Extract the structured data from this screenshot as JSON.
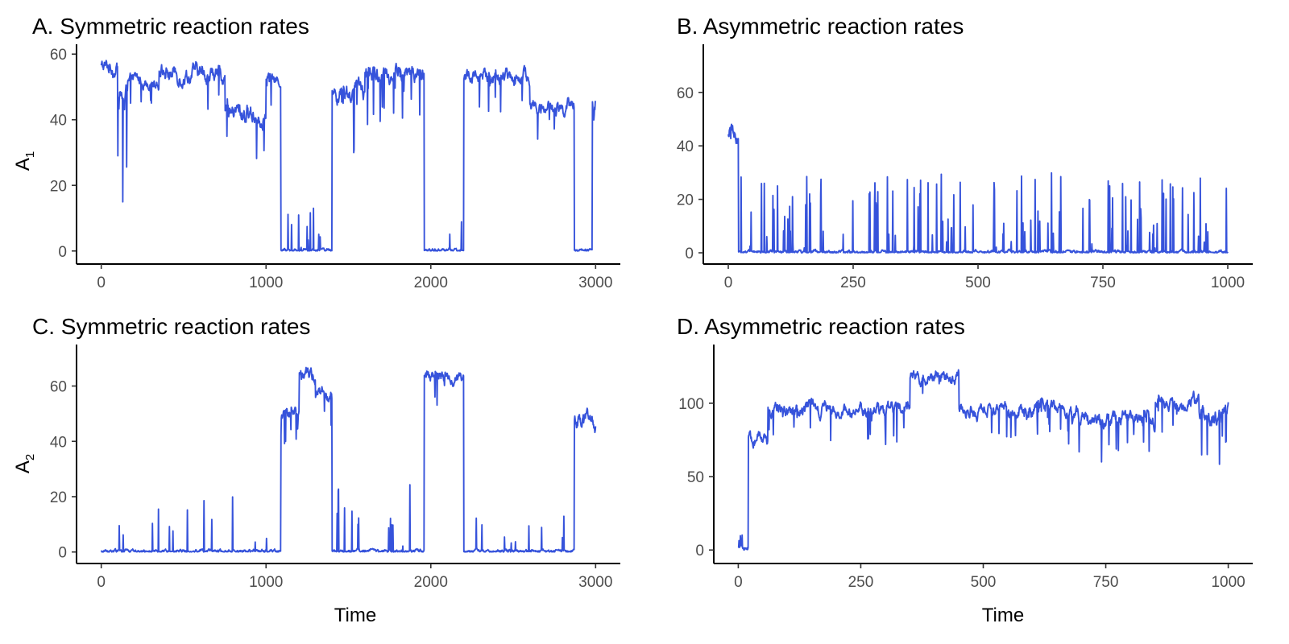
{
  "figure": {
    "series_color": "#3653db",
    "axis_color": "#000000",
    "tick_label_color": "#4d4d4d"
  },
  "chart_data": [
    {
      "id": "A",
      "type": "line",
      "title": "A. Symmetric reaction rates",
      "xlabel": "",
      "ylabel": {
        "main": "A",
        "sub": "1"
      },
      "xlim": [
        -150,
        3150
      ],
      "ylim": [
        -3,
        63
      ],
      "xticks": [
        0,
        1000,
        2000,
        3000
      ],
      "xtick_labels": [
        "0",
        "1000",
        "2000",
        "3000"
      ],
      "yticks": [
        0,
        20,
        40,
        60
      ],
      "ytick_labels": [
        "0",
        "20",
        "40",
        "60"
      ],
      "x_end": 3000,
      "segments": [
        {
          "x0": 0,
          "x1": 100,
          "level": 56,
          "noise": 3,
          "spike_rate": 0.02,
          "spike_depth": 10
        },
        {
          "x0": 100,
          "x1": 160,
          "level": 48,
          "noise": 5,
          "spike_rate": 0.2,
          "spike_depth": 35
        },
        {
          "x0": 160,
          "x1": 350,
          "level": 52,
          "noise": 2.5,
          "spike_rate": 0.04,
          "spike_depth": 15
        },
        {
          "x0": 350,
          "x1": 750,
          "level": 54,
          "noise": 3.5,
          "spike_rate": 0.04,
          "spike_depth": 14
        },
        {
          "x0": 750,
          "x1": 1000,
          "level": 42,
          "noise": 4,
          "spike_rate": 0.05,
          "spike_depth": 16
        },
        {
          "x0": 1000,
          "x1": 1090,
          "level": 52,
          "noise": 2.5,
          "spike_rate": 0.02,
          "spike_depth": 10
        },
        {
          "x0": 1090,
          "x1": 1400,
          "level": 0,
          "noise": 1,
          "spike_rate": 0.05,
          "spike_height": 14
        },
        {
          "x0": 1400,
          "x1": 1600,
          "level": 48,
          "noise": 3.5,
          "spike_rate": 0.06,
          "spike_depth": 20
        },
        {
          "x0": 1600,
          "x1": 1960,
          "level": 54,
          "noise": 3.5,
          "spike_rate": 0.05,
          "spike_depth": 16
        },
        {
          "x0": 1960,
          "x1": 2200,
          "level": 0,
          "noise": 1,
          "spike_rate": 0.03,
          "spike_height": 20
        },
        {
          "x0": 2200,
          "x1": 2600,
          "level": 53,
          "noise": 3,
          "spike_rate": 0.04,
          "spike_depth": 12
        },
        {
          "x0": 2600,
          "x1": 2870,
          "level": 44,
          "noise": 3,
          "spike_rate": 0.03,
          "spike_depth": 10
        },
        {
          "x0": 2870,
          "x1": 2980,
          "level": 0,
          "noise": 1,
          "spike_rate": 0.03,
          "spike_height": 8
        },
        {
          "x0": 2980,
          "x1": 3000,
          "level": 45,
          "noise": 6,
          "spike_rate": 0.1,
          "spike_depth": 20
        }
      ]
    },
    {
      "id": "B",
      "type": "line",
      "title": "B. Asymmetric reaction rates",
      "xlabel": "",
      "ylabel": {
        "main": "",
        "sub": ""
      },
      "xlim": [
        -50,
        1050
      ],
      "ylim": [
        -3,
        78
      ],
      "xticks": [
        0,
        250,
        500,
        750,
        1000
      ],
      "xtick_labels": [
        "0",
        "250",
        "500",
        "750",
        "1000"
      ],
      "yticks": [
        0,
        20,
        40,
        60
      ],
      "ytick_labels": [
        "0",
        "20",
        "40",
        "60"
      ],
      "x_end": 1000,
      "segments": [
        {
          "x0": 0,
          "x1": 20,
          "level": 44,
          "noise": 5,
          "spike_rate": 0.1,
          "spike_depth": 12
        },
        {
          "x0": 20,
          "x1": 1000,
          "level": 0,
          "noise": 1.2,
          "spike_rate": 0.07,
          "spike_height": 30
        }
      ]
    },
    {
      "id": "C",
      "type": "line",
      "title": "C. Symmetric reaction rates",
      "xlabel": "Time",
      "ylabel": {
        "main": "A",
        "sub": "2"
      },
      "xlim": [
        -150,
        3150
      ],
      "ylim": [
        -3,
        75
      ],
      "xticks": [
        0,
        1000,
        2000,
        3000
      ],
      "xtick_labels": [
        "0",
        "1000",
        "2000",
        "3000"
      ],
      "yticks": [
        0,
        20,
        40,
        60
      ],
      "ytick_labels": [
        "0",
        "20",
        "40",
        "60"
      ],
      "x_end": 3000,
      "segments": [
        {
          "x0": 0,
          "x1": 1090,
          "level": 0,
          "noise": 1.2,
          "spike_rate": 0.03,
          "spike_height": 20
        },
        {
          "x0": 1090,
          "x1": 1200,
          "level": 50,
          "noise": 3,
          "spike_rate": 0.05,
          "spike_depth": 12
        },
        {
          "x0": 1200,
          "x1": 1300,
          "level": 64,
          "noise": 3.5,
          "spike_rate": 0.03,
          "spike_depth": 10
        },
        {
          "x0": 1300,
          "x1": 1400,
          "level": 56,
          "noise": 3.5,
          "spike_rate": 0.05,
          "spike_depth": 15
        },
        {
          "x0": 1400,
          "x1": 1960,
          "level": 0,
          "noise": 1.2,
          "spike_rate": 0.05,
          "spike_height": 28
        },
        {
          "x0": 1960,
          "x1": 2200,
          "level": 63,
          "noise": 3,
          "spike_rate": 0.03,
          "spike_depth": 12
        },
        {
          "x0": 2200,
          "x1": 2870,
          "level": 0,
          "noise": 1.2,
          "spike_rate": 0.04,
          "spike_height": 14
        },
        {
          "x0": 2870,
          "x1": 3000,
          "level": 47,
          "noise": 4,
          "spike_rate": 0.05,
          "spike_depth": 15
        }
      ]
    },
    {
      "id": "D",
      "type": "line",
      "title": "D. Asymmetric reaction rates",
      "xlabel": "Time",
      "ylabel": {
        "main": "",
        "sub": ""
      },
      "xlim": [
        -50,
        1050
      ],
      "ylim": [
        -7,
        140
      ],
      "xticks": [
        0,
        250,
        500,
        750,
        1000
      ],
      "xtick_labels": [
        "0",
        "250",
        "500",
        "750",
        "1000"
      ],
      "yticks": [
        0,
        50,
        100
      ],
      "ytick_labels": [
        "0",
        "50",
        "100"
      ],
      "x_end": 1000,
      "segments": [
        {
          "x0": 0,
          "x1": 20,
          "level": 2,
          "noise": 3,
          "spike_rate": 0.1,
          "spike_height": 10
        },
        {
          "x0": 20,
          "x1": 60,
          "level": 75,
          "noise": 6,
          "spike_rate": 0.05,
          "spike_depth": 20
        },
        {
          "x0": 60,
          "x1": 350,
          "level": 96,
          "noise": 6,
          "spike_rate": 0.06,
          "spike_depth": 25
        },
        {
          "x0": 350,
          "x1": 450,
          "level": 118,
          "noise": 6,
          "spike_rate": 0.04,
          "spike_depth": 20
        },
        {
          "x0": 450,
          "x1": 680,
          "level": 96,
          "noise": 6,
          "spike_rate": 0.05,
          "spike_depth": 25
        },
        {
          "x0": 680,
          "x1": 850,
          "level": 90,
          "noise": 7,
          "spike_rate": 0.05,
          "spike_depth": 30
        },
        {
          "x0": 850,
          "x1": 940,
          "level": 100,
          "noise": 6,
          "spike_rate": 0.04,
          "spike_depth": 25
        },
        {
          "x0": 940,
          "x1": 1000,
          "level": 93,
          "noise": 8,
          "spike_rate": 0.08,
          "spike_depth": 40
        }
      ]
    }
  ]
}
